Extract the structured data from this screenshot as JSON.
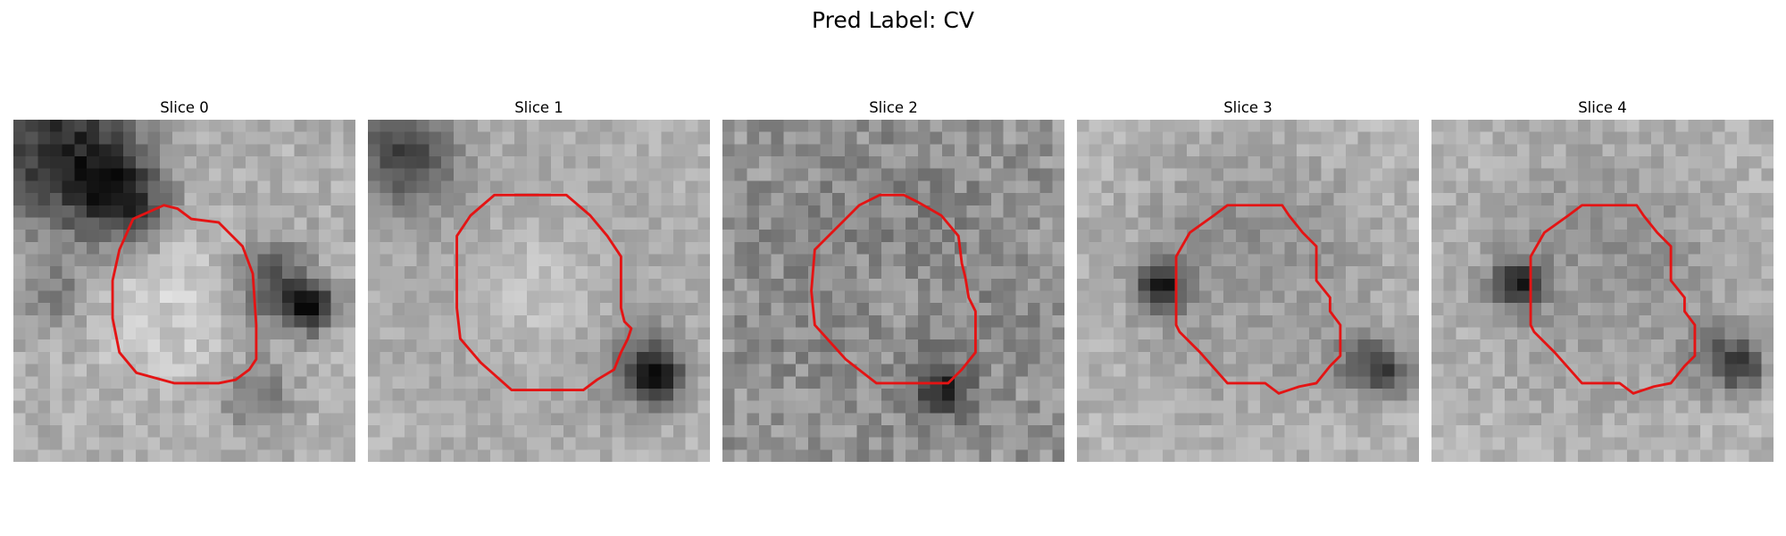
{
  "figure": {
    "title": "Pred Label: CV",
    "contour_color": "#e41414"
  },
  "panels": [
    {
      "title": "Slice 0",
      "seed": 11,
      "base": 175,
      "noise": 45,
      "blobs": [
        [
          0.15,
          0.1,
          0.22,
          -140
        ],
        [
          0.32,
          0.24,
          0.12,
          -110
        ],
        [
          0.75,
          0.48,
          0.12,
          -90
        ],
        [
          0.71,
          0.8,
          0.1,
          -60
        ],
        [
          0.87,
          0.55,
          0.07,
          -140
        ],
        [
          0.12,
          0.52,
          0.1,
          -50
        ],
        [
          0.5,
          0.55,
          0.24,
          55
        ],
        [
          0.55,
          0.55,
          0.26,
          -25
        ]
      ],
      "contour": [
        [
          0.35,
          0.29
        ],
        [
          0.44,
          0.25
        ],
        [
          0.48,
          0.26
        ],
        [
          0.52,
          0.29
        ],
        [
          0.6,
          0.3
        ],
        [
          0.67,
          0.37
        ],
        [
          0.7,
          0.45
        ],
        [
          0.71,
          0.6
        ],
        [
          0.71,
          0.7
        ],
        [
          0.69,
          0.73
        ],
        [
          0.65,
          0.76
        ],
        [
          0.6,
          0.77
        ],
        [
          0.47,
          0.77
        ],
        [
          0.36,
          0.74
        ],
        [
          0.31,
          0.68
        ],
        [
          0.29,
          0.58
        ],
        [
          0.29,
          0.47
        ],
        [
          0.31,
          0.38
        ]
      ]
    },
    {
      "title": "Slice 1",
      "seed": 23,
      "base": 180,
      "noise": 35,
      "blobs": [
        [
          0.1,
          0.1,
          0.15,
          -110
        ],
        [
          0.5,
          0.5,
          0.33,
          -80
        ],
        [
          0.5,
          0.5,
          0.26,
          95
        ],
        [
          0.8,
          0.72,
          0.12,
          -70
        ],
        [
          0.85,
          0.75,
          0.07,
          -110
        ]
      ],
      "contour": [
        [
          0.37,
          0.22
        ],
        [
          0.58,
          0.22
        ],
        [
          0.65,
          0.28
        ],
        [
          0.7,
          0.34
        ],
        [
          0.74,
          0.4
        ],
        [
          0.74,
          0.55
        ],
        [
          0.75,
          0.59
        ],
        [
          0.77,
          0.61
        ],
        [
          0.76,
          0.64
        ],
        [
          0.74,
          0.68
        ],
        [
          0.72,
          0.73
        ],
        [
          0.67,
          0.76
        ],
        [
          0.63,
          0.79
        ],
        [
          0.57,
          0.79
        ],
        [
          0.42,
          0.79
        ],
        [
          0.33,
          0.71
        ],
        [
          0.27,
          0.64
        ],
        [
          0.26,
          0.55
        ],
        [
          0.26,
          0.34
        ],
        [
          0.3,
          0.28
        ]
      ]
    },
    {
      "title": "Slice 2",
      "seed": 37,
      "base": 150,
      "noise": 60,
      "blobs": [
        [
          0.5,
          0.48,
          0.3,
          -70
        ],
        [
          0.5,
          0.5,
          0.24,
          65
        ],
        [
          0.65,
          0.8,
          0.08,
          -80
        ],
        [
          0.62,
          0.74,
          0.07,
          -40
        ]
      ],
      "contour": [
        [
          0.4,
          0.25
        ],
        [
          0.46,
          0.22
        ],
        [
          0.53,
          0.22
        ],
        [
          0.57,
          0.24
        ],
        [
          0.64,
          0.28
        ],
        [
          0.69,
          0.34
        ],
        [
          0.7,
          0.42
        ],
        [
          0.71,
          0.46
        ],
        [
          0.72,
          0.52
        ],
        [
          0.74,
          0.56
        ],
        [
          0.74,
          0.68
        ],
        [
          0.7,
          0.73
        ],
        [
          0.66,
          0.77
        ],
        [
          0.58,
          0.77
        ],
        [
          0.45,
          0.77
        ],
        [
          0.36,
          0.7
        ],
        [
          0.27,
          0.6
        ],
        [
          0.26,
          0.5
        ],
        [
          0.27,
          0.38
        ],
        [
          0.34,
          0.31
        ]
      ]
    },
    {
      "title": "Slice 3",
      "seed": 51,
      "base": 180,
      "noise": 40,
      "blobs": [
        [
          0.5,
          0.47,
          0.29,
          -85
        ],
        [
          0.5,
          0.5,
          0.22,
          60
        ],
        [
          0.25,
          0.48,
          0.07,
          -130
        ],
        [
          0.85,
          0.72,
          0.09,
          -90
        ],
        [
          0.92,
          0.75,
          0.06,
          -60
        ]
      ],
      "contour": [
        [
          0.33,
          0.33
        ],
        [
          0.4,
          0.28
        ],
        [
          0.44,
          0.25
        ],
        [
          0.6,
          0.25
        ],
        [
          0.62,
          0.28
        ],
        [
          0.66,
          0.33
        ],
        [
          0.7,
          0.37
        ],
        [
          0.7,
          0.47
        ],
        [
          0.74,
          0.52
        ],
        [
          0.74,
          0.56
        ],
        [
          0.77,
          0.6
        ],
        [
          0.77,
          0.64
        ],
        [
          0.77,
          0.69
        ],
        [
          0.74,
          0.72
        ],
        [
          0.7,
          0.77
        ],
        [
          0.65,
          0.78
        ],
        [
          0.62,
          0.79
        ],
        [
          0.59,
          0.8
        ],
        [
          0.55,
          0.77
        ],
        [
          0.44,
          0.77
        ],
        [
          0.36,
          0.68
        ],
        [
          0.3,
          0.62
        ],
        [
          0.29,
          0.6
        ],
        [
          0.29,
          0.4
        ]
      ]
    },
    {
      "title": "Slice 4",
      "seed": 67,
      "base": 180,
      "noise": 40,
      "blobs": [
        [
          0.5,
          0.47,
          0.29,
          -85
        ],
        [
          0.5,
          0.5,
          0.22,
          60
        ],
        [
          0.25,
          0.48,
          0.07,
          -130
        ],
        [
          0.86,
          0.7,
          0.09,
          -90
        ],
        [
          0.92,
          0.73,
          0.06,
          -60
        ]
      ],
      "contour": [
        [
          0.33,
          0.33
        ],
        [
          0.4,
          0.28
        ],
        [
          0.44,
          0.25
        ],
        [
          0.6,
          0.25
        ],
        [
          0.62,
          0.28
        ],
        [
          0.66,
          0.33
        ],
        [
          0.7,
          0.37
        ],
        [
          0.7,
          0.47
        ],
        [
          0.74,
          0.52
        ],
        [
          0.74,
          0.56
        ],
        [
          0.77,
          0.6
        ],
        [
          0.77,
          0.64
        ],
        [
          0.77,
          0.69
        ],
        [
          0.74,
          0.72
        ],
        [
          0.7,
          0.77
        ],
        [
          0.65,
          0.78
        ],
        [
          0.62,
          0.79
        ],
        [
          0.59,
          0.8
        ],
        [
          0.55,
          0.77
        ],
        [
          0.44,
          0.77
        ],
        [
          0.36,
          0.68
        ],
        [
          0.3,
          0.62
        ],
        [
          0.29,
          0.6
        ],
        [
          0.29,
          0.4
        ]
      ]
    }
  ]
}
